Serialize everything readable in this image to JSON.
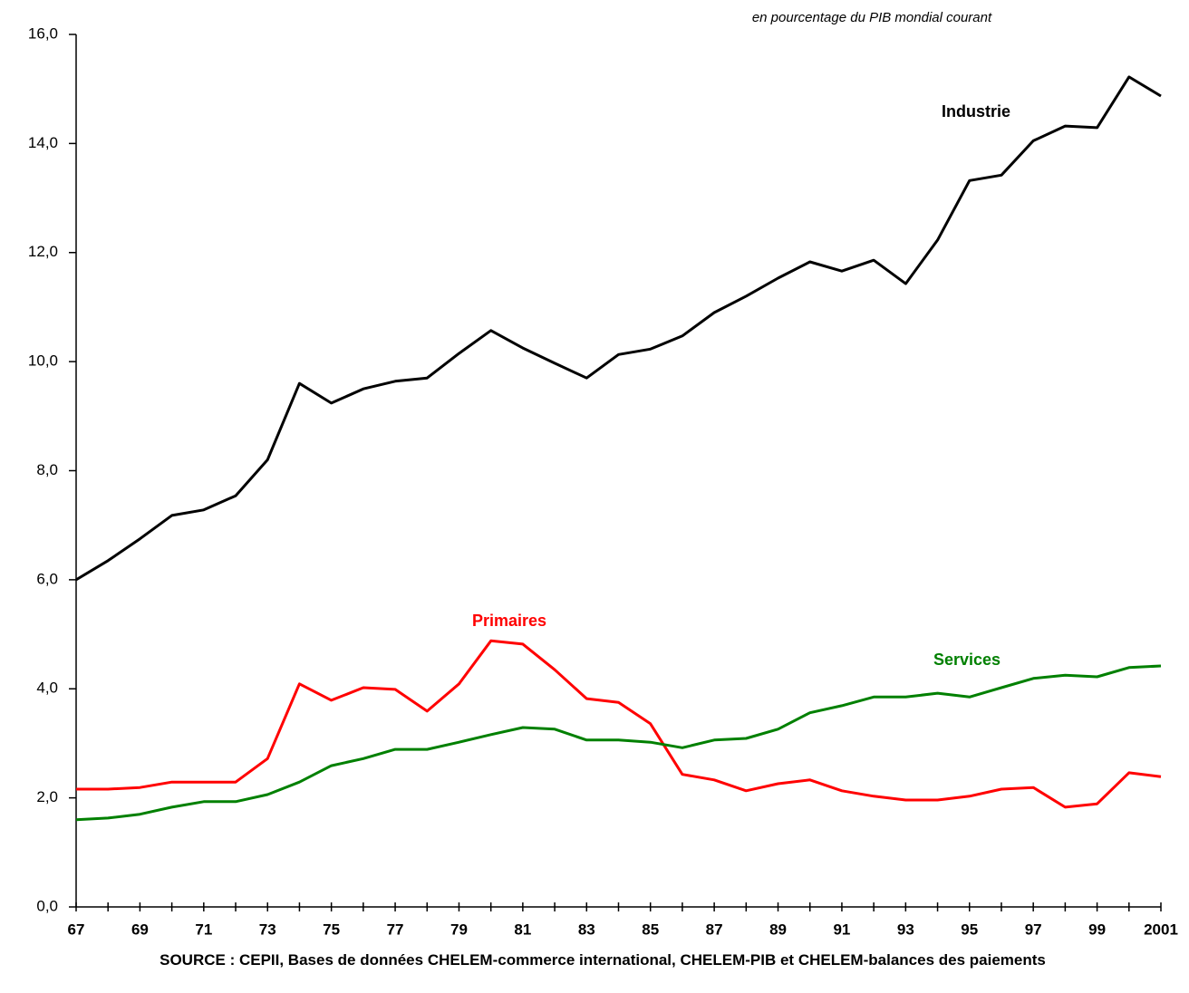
{
  "chart_data": {
    "type": "line",
    "subtitle": "en pourcentage du PIB mondial courant",
    "source": "SOURCE : CEPII, Bases de données CHELEM-commerce international, CHELEM-PIB et CHELEM-balances des paiements",
    "categories": [
      "67",
      null,
      "69",
      null,
      "71",
      null,
      "73",
      null,
      "75",
      null,
      "77",
      null,
      "79",
      null,
      "81",
      null,
      "83",
      null,
      "85",
      null,
      "87",
      null,
      "89",
      null,
      "91",
      null,
      "93",
      null,
      "95",
      null,
      "97",
      null,
      "99",
      null,
      "2001"
    ],
    "series": [
      {
        "name": "Industrie",
        "color": "#000000",
        "values": [
          6.0,
          6.35,
          6.75,
          7.18,
          7.28,
          7.54,
          8.2,
          9.6,
          9.24,
          9.5,
          9.64,
          9.7,
          10.15,
          10.57,
          10.25,
          9.97,
          9.7,
          10.13,
          10.23,
          10.47,
          10.9,
          11.2,
          11.53,
          11.83,
          11.66,
          11.86,
          11.43,
          12.23,
          13.32,
          13.42,
          14.05,
          14.32,
          14.29,
          15.22,
          14.87
        ]
      },
      {
        "name": "Primaires",
        "color": "#ff0000",
        "values": [
          2.16,
          2.16,
          2.19,
          2.29,
          2.29,
          2.29,
          2.72,
          4.09,
          3.79,
          4.02,
          3.99,
          3.59,
          4.09,
          4.88,
          4.82,
          4.35,
          3.82,
          3.75,
          3.36,
          2.43,
          2.33,
          2.13,
          2.26,
          2.33,
          2.13,
          2.03,
          1.96,
          1.96,
          2.03,
          2.16,
          2.19,
          1.83,
          1.89,
          2.46,
          2.39
        ]
      },
      {
        "name": "Services",
        "color": "#008000",
        "values": [
          1.6,
          1.63,
          1.7,
          1.83,
          1.93,
          1.93,
          2.06,
          2.29,
          2.59,
          2.72,
          2.89,
          2.89,
          3.02,
          3.16,
          3.29,
          3.26,
          3.06,
          3.06,
          3.02,
          2.92,
          3.06,
          3.09,
          3.26,
          3.56,
          3.69,
          3.85,
          3.85,
          3.92,
          3.85,
          4.02,
          4.19,
          4.25,
          4.22,
          4.39,
          4.42
        ]
      }
    ],
    "ylim": [
      0,
      16
    ],
    "yticks": [
      {
        "value": 0,
        "label": "0,0"
      },
      {
        "value": 2,
        "label": "2,0"
      },
      {
        "value": 4,
        "label": "4,0"
      },
      {
        "value": 6,
        "label": "6,0"
      },
      {
        "value": 8,
        "label": "8,0"
      },
      {
        "value": 10,
        "label": "10,0"
      },
      {
        "value": 12,
        "label": "12,0"
      },
      {
        "value": 14,
        "label": "14,0"
      },
      {
        "value": 16,
        "label": "16,0"
      }
    ],
    "grid": false
  }
}
